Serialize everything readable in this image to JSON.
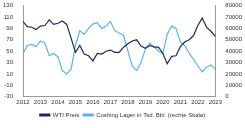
{
  "chart_data": {
    "type": "line",
    "categories": [
      "2012",
      null,
      null,
      null,
      "2013",
      null,
      null,
      null,
      "2014",
      null,
      null,
      null,
      "2015",
      null,
      null,
      null,
      "2016",
      null,
      null,
      null,
      "2017",
      null,
      null,
      null,
      "2018",
      null,
      null,
      null,
      "2019",
      null,
      null,
      null,
      "2020",
      null,
      null,
      null,
      "2021",
      null,
      null,
      null,
      "2022",
      null,
      null,
      null,
      "2023"
    ],
    "series": [
      {
        "name": "WTI Preis",
        "color": "#1f2a5a",
        "values": [
          102,
          93,
          92,
          88,
          94,
          95,
          105,
          97,
          99,
          103,
          97,
          73,
          48,
          60,
          45,
          42,
          33,
          46,
          45,
          50,
          52,
          48,
          48,
          57,
          63,
          68,
          70,
          59,
          55,
          60,
          57,
          57,
          46,
          28,
          41,
          42,
          58,
          66,
          70,
          77,
          95,
          108,
          92,
          85,
          76
        ]
      },
      {
        "name": "Cushing Lager in Tsd. Bbl. (rechte Skala)",
        "color": "#5bb4e5",
        "axis": "y2",
        "values": [
          38000,
          45000,
          46000,
          44000,
          49000,
          47000,
          36000,
          38000,
          35000,
          23000,
          20000,
          24000,
          45000,
          58000,
          55000,
          60000,
          64000,
          65000,
          60000,
          62000,
          66000,
          58000,
          56000,
          54000,
          40000,
          27000,
          23000,
          30000,
          42000,
          47000,
          44000,
          40000,
          38000,
          55000,
          62000,
          60000,
          48000,
          45000,
          38000,
          33000,
          27000,
          22000,
          26000,
          28000,
          24000
        ]
      }
    ],
    "ylim": [
      -30,
      130
    ],
    "yticks": [
      -30,
      -10,
      10,
      30,
      50,
      70,
      90,
      110,
      130
    ],
    "y2lim": [
      0,
      80000
    ],
    "y2ticks": [
      0,
      10000,
      20000,
      30000,
      40000,
      50000,
      60000,
      70000,
      80000
    ],
    "legend": "bottom",
    "grid": false
  }
}
